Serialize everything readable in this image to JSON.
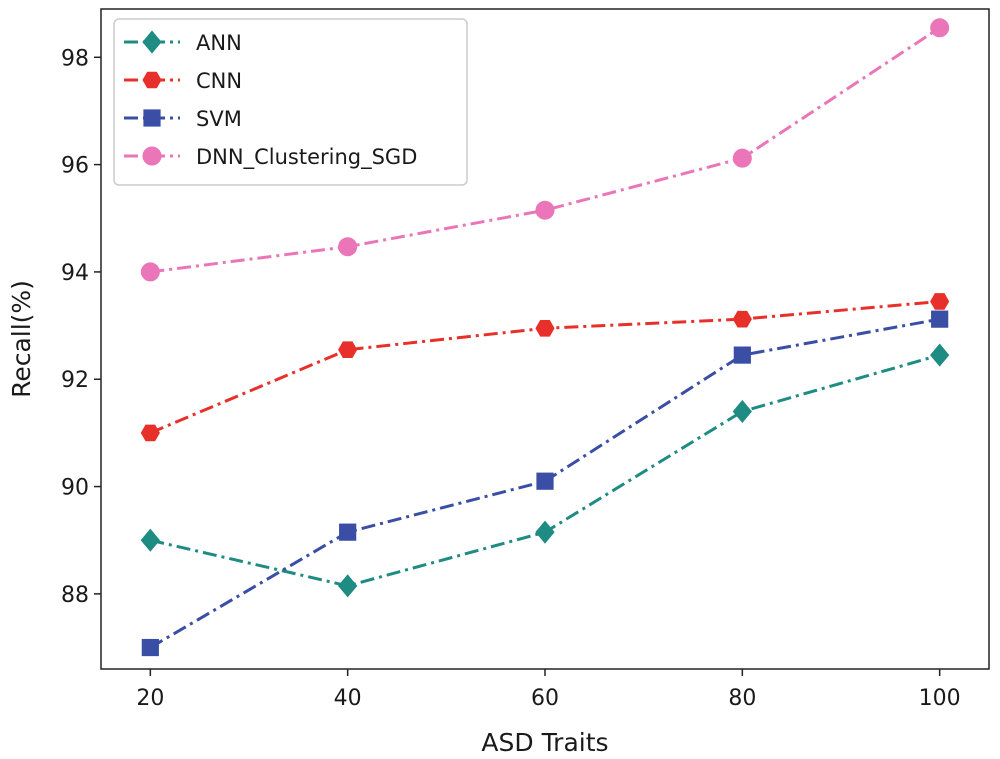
{
  "chart_data": {
    "type": "line",
    "xlabel": "ASD Traits",
    "ylabel": "Recall(%)",
    "x": [
      20,
      40,
      60,
      80,
      100
    ],
    "xlim": [
      15,
      105
    ],
    "ylim": [
      86.6,
      98.9
    ],
    "xticks": [
      20,
      40,
      60,
      80,
      100
    ],
    "yticks": [
      88,
      90,
      92,
      94,
      96,
      98
    ],
    "grid": false,
    "legend_position": "top-left",
    "series": [
      {
        "name": "ANN",
        "color": "#1e8c82",
        "marker": "diamond",
        "values": [
          89.0,
          88.15,
          89.15,
          91.4,
          92.45
        ]
      },
      {
        "name": "CNN",
        "color": "#e8302a",
        "marker": "hexagon",
        "values": [
          91.0,
          92.55,
          92.95,
          93.12,
          93.45
        ]
      },
      {
        "name": "SVM",
        "color": "#3b4ea6",
        "marker": "square",
        "values": [
          87.0,
          89.15,
          90.1,
          92.45,
          93.12
        ]
      },
      {
        "name": "DNN_Clustering_SGD",
        "color": "#ea76b9",
        "marker": "circle",
        "values": [
          94.0,
          94.47,
          95.15,
          96.12,
          98.55
        ]
      }
    ]
  }
}
